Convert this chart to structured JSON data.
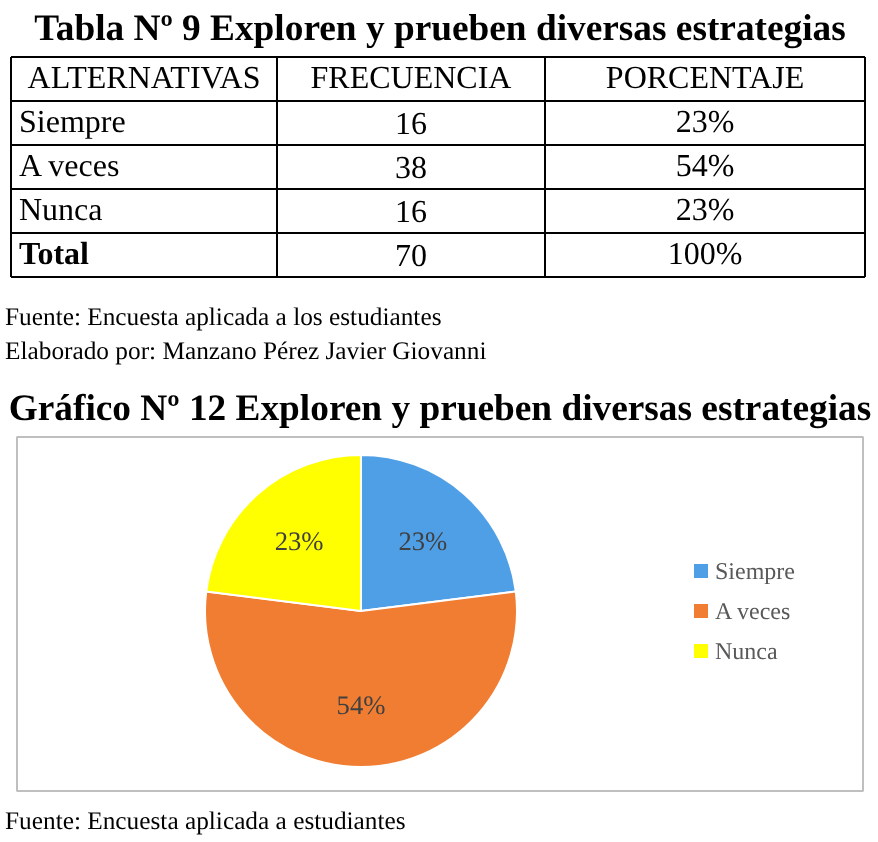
{
  "chart_data": [
    {
      "type": "other",
      "title": "Tabla Nº 9 Exploren y prueben diversas estrategias",
      "xlabel": "ALTERNATIVAS",
      "data_labels": true,
      "categories": [
        "Siempre",
        "A veces",
        "Nunca",
        "Total"
      ],
      "series": [
        {
          "name": "FRECUENCIA",
          "values": [
            16,
            38,
            16,
            70
          ]
        },
        {
          "name": "PORCENTAJE",
          "values": [
            23,
            54,
            23,
            100
          ],
          "value_labels": [
            "23%",
            "54%",
            "23%",
            "100%"
          ]
        }
      ],
      "annotations": [
        "Fuente: Encuesta aplicada a los estudiantes",
        "Elaborado por: Manzano Pérez Javier Giovanni"
      ]
    },
    {
      "type": "pie",
      "title": "Gráfico Nº 12 Exploren y prueben diversas estrategias",
      "categories": [
        "Siempre",
        "A veces",
        "Nunca"
      ],
      "values": [
        23,
        54,
        23
      ],
      "colors": [
        "#4f9fe6",
        "#f07d32",
        "#ffff00"
      ],
      "value_labels": [
        "23%",
        "54%",
        "23%"
      ],
      "legend": "right",
      "annotations": [
        "Fuente: Encuesta aplicada a estudiantes"
      ]
    }
  ]
}
